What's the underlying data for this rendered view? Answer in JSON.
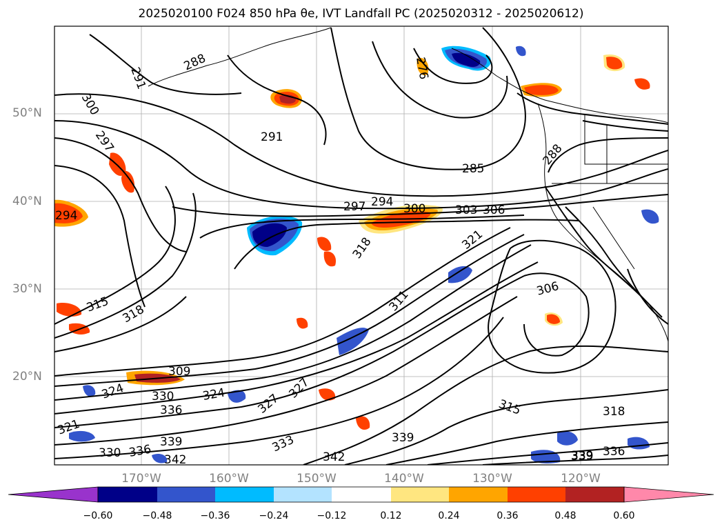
{
  "title": "2025020100 F024 850 hPa θe, IVT Landfall PC (2025020312 - 2025020612)",
  "lat_labels": [
    "50°N",
    "40°N",
    "30°N",
    "20°N"
  ],
  "lon_labels": [
    "170°W",
    "160°W",
    "150°W",
    "140°W",
    "130°W",
    "120°W"
  ],
  "colorbar": {
    "ticks": [
      "−0.60",
      "−0.48",
      "−0.36",
      "−0.24",
      "−0.12",
      "0.12",
      "0.24",
      "0.36",
      "0.48",
      "0.60"
    ],
    "colors": [
      "#9933cc",
      "#000088",
      "#3355cc",
      "#00bbff",
      "#b3e3ff",
      "#ffffff",
      "#ffe680",
      "#ffa500",
      "#ff4000",
      "#b22222",
      "#ff88aa"
    ]
  },
  "contour_labels": [
    {
      "text": "291"
    },
    {
      "text": "288"
    },
    {
      "text": "300"
    },
    {
      "text": "297"
    },
    {
      "text": "291"
    },
    {
      "text": "276"
    },
    {
      "text": "285"
    },
    {
      "text": "288"
    },
    {
      "text": "294"
    },
    {
      "text": "297"
    },
    {
      "text": "294"
    },
    {
      "text": "300"
    },
    {
      "text": "303"
    },
    {
      "text": "306"
    },
    {
      "text": "318"
    },
    {
      "text": "321"
    },
    {
      "text": "306"
    },
    {
      "text": "311"
    },
    {
      "text": "315"
    },
    {
      "text": "318"
    },
    {
      "text": "309"
    },
    {
      "text": "324"
    },
    {
      "text": "330"
    },
    {
      "text": "324"
    },
    {
      "text": "327"
    },
    {
      "text": "336"
    },
    {
      "text": "339"
    },
    {
      "text": "330"
    },
    {
      "text": "336"
    },
    {
      "text": "339"
    },
    {
      "text": "342"
    },
    {
      "text": "333"
    },
    {
      "text": "342"
    },
    {
      "text": "339"
    },
    {
      "text": "315"
    },
    {
      "text": "318"
    },
    {
      "text": "339"
    },
    {
      "text": "336"
    },
    {
      "text": "321"
    },
    {
      "text": "327"
    }
  ]
}
